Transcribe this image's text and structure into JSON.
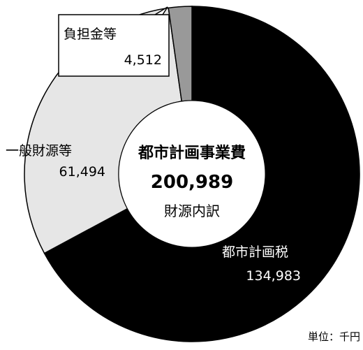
{
  "chart_data": {
    "type": "pie",
    "donut": true,
    "title": "都市計画事業費",
    "total": "200,989",
    "subtitle": "財源内訳",
    "unit": "単位：千円",
    "slices": [
      {
        "label": "都市計画税",
        "value": 134983,
        "value_text": "134,983",
        "color": "#000000"
      },
      {
        "label": "一般財源等",
        "value": 61494,
        "value_text": "61,494",
        "color": "#e6e6e6"
      },
      {
        "label": "負担金等",
        "value": 4512,
        "value_text": "4,512",
        "color": "#999999"
      }
    ]
  }
}
